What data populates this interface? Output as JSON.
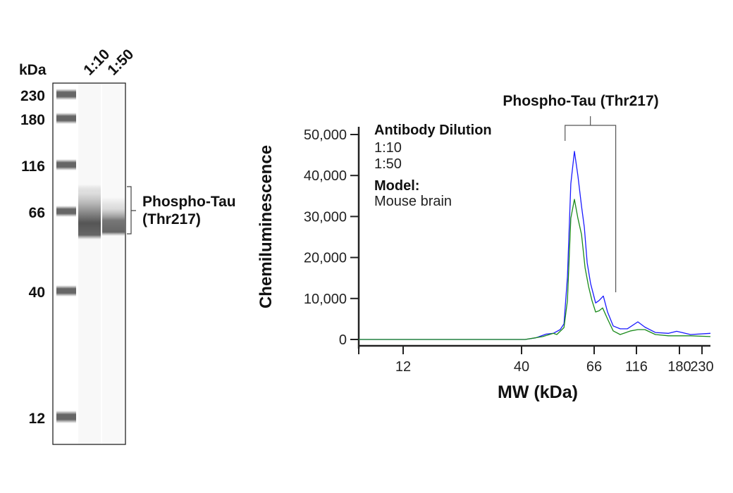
{
  "gel": {
    "unit_label": "kDa",
    "lanes": [
      "1:10",
      "1:50"
    ],
    "ladder": [
      "230",
      "180",
      "116",
      "66",
      "40",
      "12"
    ],
    "target_label_line1": "Phospho-Tau",
    "target_label_line2": "(Thr217)"
  },
  "chart_data": {
    "type": "line",
    "title": "Phospho-Tau (Thr217)",
    "xlabel": "MW (kDa)",
    "ylabel": "Chemiluminescence",
    "xticks": [
      12,
      40,
      66,
      116,
      180,
      230
    ],
    "xtick_labels": [
      "12",
      "40",
      "66",
      "116",
      "180",
      "230"
    ],
    "yticks": [
      0,
      10000,
      20000,
      30000,
      40000,
      50000
    ],
    "ytick_labels": [
      "0",
      "10,000",
      "20,000",
      "30,000",
      "40,000",
      "50,000"
    ],
    "ylim": [
      0,
      50000
    ],
    "xlim": [
      8,
      252
    ],
    "grid": false,
    "legend": {
      "title": "Antibody Dilution",
      "placement": "top-left",
      "model_label": "Model:",
      "model_value": "Mouse brain"
    },
    "annotation": "Phospho-Tau (Thr217)",
    "annotation_range_kda": [
      54,
      88
    ],
    "series": [
      {
        "name": "1:10",
        "color": "#1a1aff",
        "label_color": "#3a4fa8",
        "points": [
          [
            8,
            0
          ],
          [
            41,
            0
          ],
          [
            44.1,
            400
          ],
          [
            47.4,
            1300
          ],
          [
            49.8,
            1500
          ],
          [
            52.2,
            2400
          ],
          [
            53.6,
            3800
          ],
          [
            54.9,
            15300
          ],
          [
            56.2,
            38000
          ],
          [
            57.6,
            45900
          ],
          [
            59,
            40000
          ],
          [
            60.5,
            32500
          ],
          [
            61.7,
            27300
          ],
          [
            62.9,
            18700
          ],
          [
            64.4,
            13600
          ],
          [
            67.3,
            8900
          ],
          [
            70.5,
            9500
          ],
          [
            74.6,
            10600
          ],
          [
            78.9,
            6700
          ],
          [
            85.1,
            3300
          ],
          [
            93.4,
            2600
          ],
          [
            102.7,
            2600
          ],
          [
            117.7,
            4300
          ],
          [
            126.5,
            3000
          ],
          [
            140.8,
            1700
          ],
          [
            161,
            1500
          ],
          [
            175,
            2000
          ],
          [
            203,
            1200
          ],
          [
            252,
            1500
          ]
        ]
      },
      {
        "name": "1:50",
        "color": "#1a8a1a",
        "label_color": "#1e8a3a",
        "points": [
          [
            8,
            0
          ],
          [
            41,
            0
          ],
          [
            46.3,
            700
          ],
          [
            49.8,
            1500
          ],
          [
            51,
            1200
          ],
          [
            53.6,
            2900
          ],
          [
            54.9,
            9500
          ],
          [
            56.2,
            29600
          ],
          [
            57.6,
            34200
          ],
          [
            59,
            29600
          ],
          [
            60.5,
            25600
          ],
          [
            62,
            17500
          ],
          [
            63.5,
            12900
          ],
          [
            65,
            9500
          ],
          [
            67.3,
            6700
          ],
          [
            70.5,
            7000
          ],
          [
            73.9,
            7700
          ],
          [
            78.9,
            5000
          ],
          [
            85.1,
            2100
          ],
          [
            93.4,
            1200
          ],
          [
            107.6,
            2100
          ],
          [
            117.7,
            2400
          ],
          [
            126.5,
            2400
          ],
          [
            140.8,
            1200
          ],
          [
            161,
            900
          ],
          [
            203,
            900
          ],
          [
            252,
            700
          ]
        ]
      }
    ]
  }
}
